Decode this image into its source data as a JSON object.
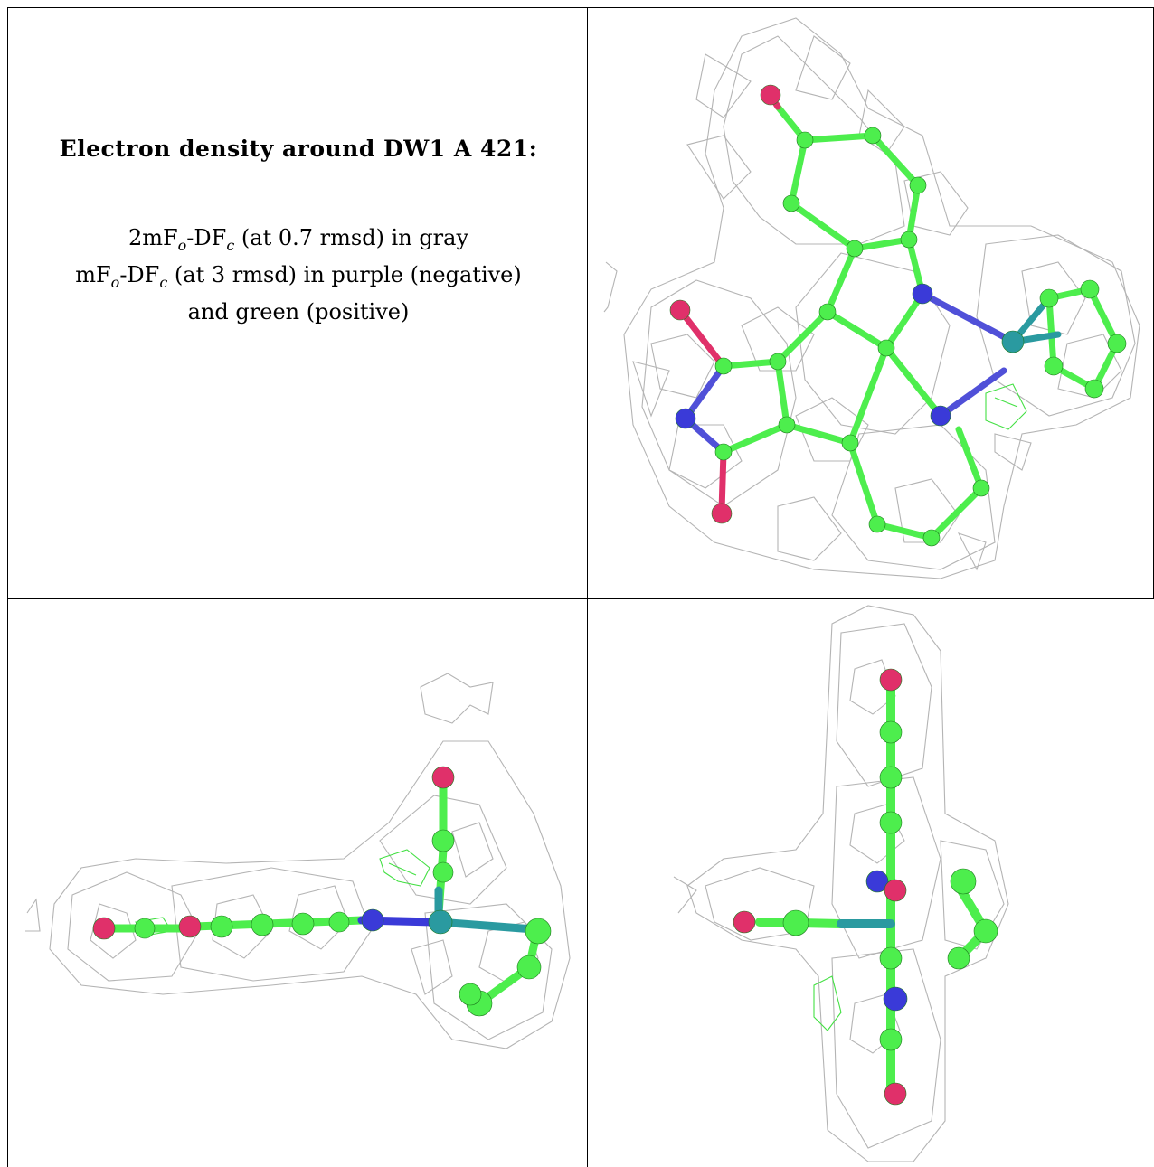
{
  "caption": {
    "title": "Electron density around DW1 A 421:",
    "line1_lead": "2mF",
    "line1_sub1": "o",
    "line1_mid": "-DF",
    "line1_sub2": "c",
    "line1_tail": " (at 0.7 rmsd) in gray",
    "line2_lead": "mF",
    "line2_sub1": "o",
    "line2_mid": "-DF",
    "line2_sub2": "c",
    "line2_tail": " (at 3 rmsd) in purple (negative)",
    "line3": "and green (positive)"
  },
  "colors": {
    "mesh_2fofc": "#b0b0b0",
    "mesh_positive": "#44e044",
    "carbon": "#4dee4d",
    "nitrogen": "#3a3ad8",
    "oxygen": "#e0306a",
    "metal": "#2a9aa0",
    "border": "#000000"
  },
  "views": [
    {
      "name": "top-view"
    },
    {
      "name": "side-view"
    },
    {
      "name": "edge-view"
    }
  ]
}
